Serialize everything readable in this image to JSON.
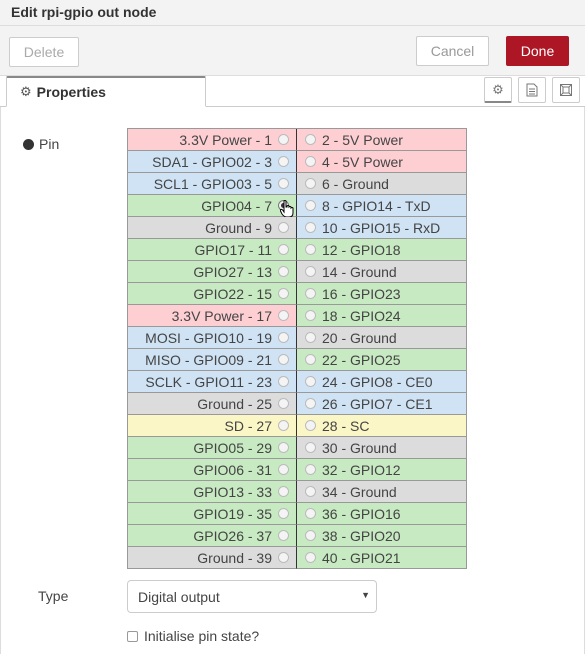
{
  "dialog": {
    "title": "Edit rpi-gpio out node"
  },
  "toolbar": {
    "delete_label": "Delete",
    "cancel_label": "Cancel",
    "done_label": "Done"
  },
  "tabs": [
    {
      "label": "Properties",
      "icon": "gear-icon",
      "active": true
    }
  ],
  "tab_buttons": [
    "gear-icon",
    "document-icon",
    "frame-icon"
  ],
  "form": {
    "pin_label": "Pin",
    "selected_pin": 7,
    "type_label": "Type",
    "type_value": "Digital output",
    "init_label": "Initialise pin state?",
    "init_checked": false
  },
  "colors": {
    "power": "#fdcfd3",
    "i2c": "#cfe3f4",
    "gpio": "#c8eac2",
    "ground": "#dcdcdc",
    "sd": "#fbf6c6",
    "done_button": "#AD1625"
  },
  "pins": [
    {
      "left": {
        "label": "3.3V Power - 1",
        "color": "power"
      },
      "right": {
        "label": "2 - 5V Power",
        "color": "power"
      }
    },
    {
      "left": {
        "label": "SDA1 - GPIO02 - 3",
        "color": "i2c"
      },
      "right": {
        "label": "4 - 5V Power",
        "color": "power"
      }
    },
    {
      "left": {
        "label": "SCL1 - GPIO03 - 5",
        "color": "i2c"
      },
      "right": {
        "label": "6 - Ground",
        "color": "ground"
      }
    },
    {
      "left": {
        "label": "GPIO04 - 7",
        "color": "gpio"
      },
      "right": {
        "label": "8 - GPIO14 - TxD",
        "color": "i2c"
      }
    },
    {
      "left": {
        "label": "Ground - 9",
        "color": "ground"
      },
      "right": {
        "label": "10 - GPIO15 - RxD",
        "color": "i2c"
      }
    },
    {
      "left": {
        "label": "GPIO17 - 11",
        "color": "gpio"
      },
      "right": {
        "label": "12 - GPIO18",
        "color": "gpio"
      }
    },
    {
      "left": {
        "label": "GPIO27 - 13",
        "color": "gpio"
      },
      "right": {
        "label": "14 - Ground",
        "color": "ground"
      }
    },
    {
      "left": {
        "label": "GPIO22 - 15",
        "color": "gpio"
      },
      "right": {
        "label": "16 - GPIO23",
        "color": "gpio"
      }
    },
    {
      "left": {
        "label": "3.3V Power - 17",
        "color": "power"
      },
      "right": {
        "label": "18 - GPIO24",
        "color": "gpio"
      }
    },
    {
      "left": {
        "label": "MOSI - GPIO10 - 19",
        "color": "i2c"
      },
      "right": {
        "label": "20 - Ground",
        "color": "ground"
      }
    },
    {
      "left": {
        "label": "MISO - GPIO09 - 21",
        "color": "i2c"
      },
      "right": {
        "label": "22 - GPIO25",
        "color": "gpio"
      }
    },
    {
      "left": {
        "label": "SCLK - GPIO11 - 23",
        "color": "i2c"
      },
      "right": {
        "label": "24 - GPIO8 - CE0",
        "color": "i2c"
      }
    },
    {
      "left": {
        "label": "Ground - 25",
        "color": "ground"
      },
      "right": {
        "label": "26 - GPIO7 - CE1",
        "color": "i2c"
      }
    },
    {
      "left": {
        "label": "SD - 27",
        "color": "sd"
      },
      "right": {
        "label": "28 - SC",
        "color": "sd"
      }
    },
    {
      "left": {
        "label": "GPIO05 - 29",
        "color": "gpio"
      },
      "right": {
        "label": "30 - Ground",
        "color": "ground"
      }
    },
    {
      "left": {
        "label": "GPIO06 - 31",
        "color": "gpio"
      },
      "right": {
        "label": "32 - GPIO12",
        "color": "gpio"
      }
    },
    {
      "left": {
        "label": "GPIO13 - 33",
        "color": "gpio"
      },
      "right": {
        "label": "34 - Ground",
        "color": "ground"
      }
    },
    {
      "left": {
        "label": "GPIO19 - 35",
        "color": "gpio"
      },
      "right": {
        "label": "36 - GPIO16",
        "color": "gpio"
      }
    },
    {
      "left": {
        "label": "GPIO26 - 37",
        "color": "gpio"
      },
      "right": {
        "label": "38 - GPIO20",
        "color": "gpio"
      }
    },
    {
      "left": {
        "label": "Ground - 39",
        "color": "ground"
      },
      "right": {
        "label": "40 - GPIO21",
        "color": "gpio"
      }
    }
  ]
}
